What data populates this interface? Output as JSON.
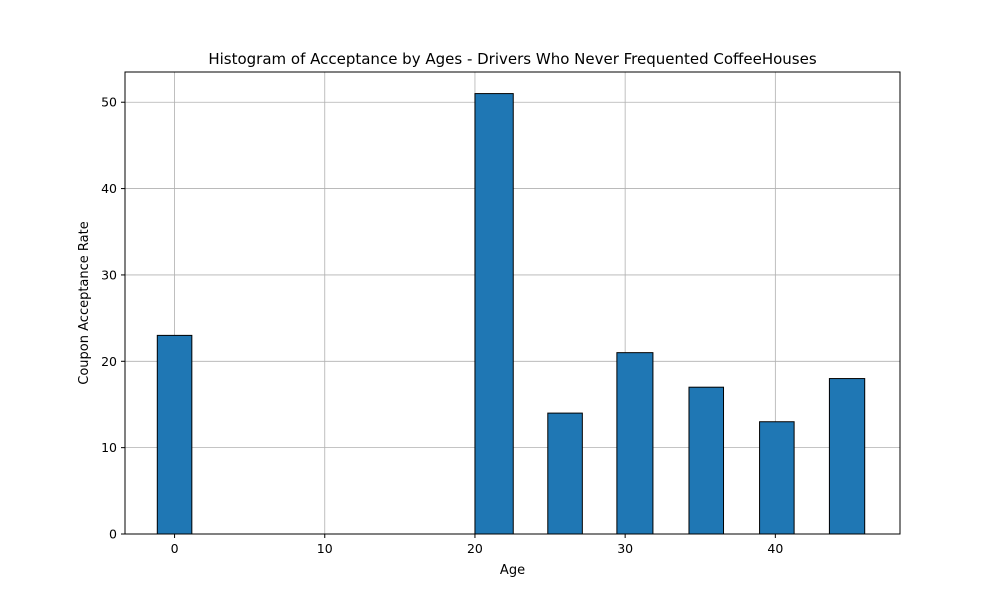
{
  "chart_data": {
    "type": "bar",
    "title": "Histogram of Acceptance by Ages - Drivers Who Never Frequented CoffeeHouses",
    "xlabel": "Age",
    "ylabel": "Coupon Acceptance Rate",
    "bins": [
      {
        "start": -1.15,
        "end": 1.15,
        "value": 23
      },
      {
        "start": 20.0,
        "end": 22.55,
        "value": 51
      },
      {
        "start": 24.85,
        "end": 27.15,
        "value": 14
      },
      {
        "start": 29.45,
        "end": 31.85,
        "value": 21
      },
      {
        "start": 34.25,
        "end": 36.55,
        "value": 17
      },
      {
        "start": 38.95,
        "end": 41.25,
        "value": 13
      },
      {
        "start": 43.6,
        "end": 45.95,
        "value": 18
      }
    ],
    "xlim": [
      -3.3,
      48.3
    ],
    "ylim": [
      0,
      53.5
    ],
    "xticks": [
      0,
      10,
      20,
      30,
      40
    ],
    "yticks": [
      0,
      10,
      20,
      30,
      40,
      50
    ],
    "grid": true,
    "bar_color": "#1f77b4",
    "edge_color": "#000000"
  }
}
